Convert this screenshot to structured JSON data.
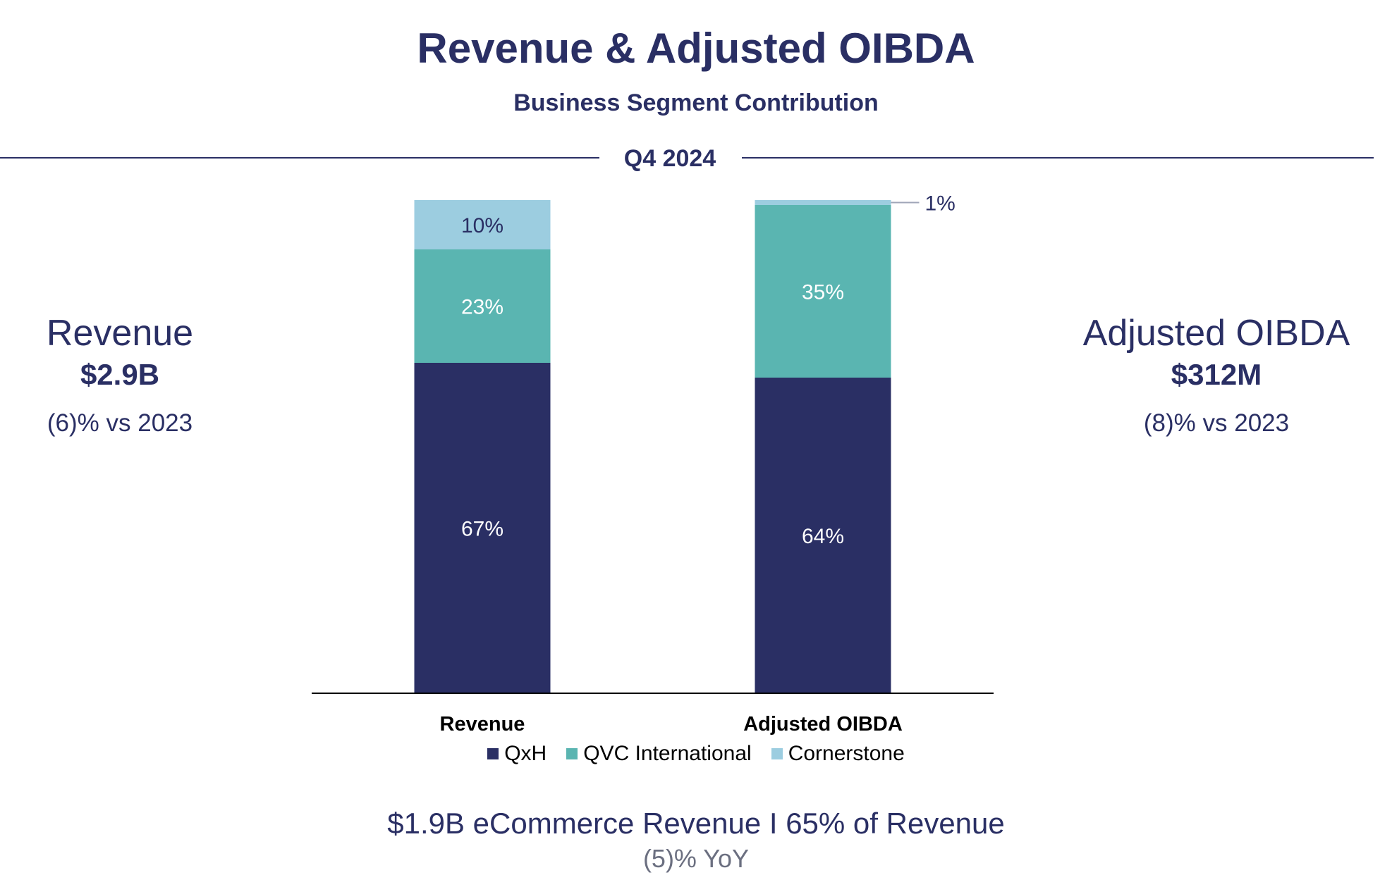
{
  "header": {
    "title": "Revenue & Adjusted OIBDA",
    "subtitle": "Business Segment Contribution",
    "period": "Q4 2024"
  },
  "left_panel": {
    "title": "Revenue",
    "value": "$2.9B",
    "change": "(6)% vs 2023"
  },
  "right_panel": {
    "title": "Adjusted OIBDA",
    "value": "$312M",
    "change": "(8)% vs 2023"
  },
  "footer": {
    "main": "$1.9B eCommerce Revenue I 65% of Revenue",
    "sub": "(5)% YoY"
  },
  "colors": {
    "QxH": "#2a2f64",
    "QVC International": "#5ab5b1",
    "Cornerstone": "#9ccde0",
    "text_dark": "#2a2f64"
  },
  "chart_data": {
    "type": "bar",
    "stacked": true,
    "categories": [
      "Revenue",
      "Adjusted OIBDA"
    ],
    "series": [
      {
        "name": "QxH",
        "values": [
          67,
          64
        ],
        "labels": [
          "67%",
          "64%"
        ]
      },
      {
        "name": "QVC International",
        "values": [
          23,
          35
        ],
        "labels": [
          "23%",
          "35%"
        ]
      },
      {
        "name": "Cornerstone",
        "values": [
          10,
          1
        ],
        "labels": [
          "10%",
          "1%"
        ]
      }
    ],
    "ylim": [
      0,
      100
    ],
    "grid": false,
    "legend": "bottom"
  }
}
